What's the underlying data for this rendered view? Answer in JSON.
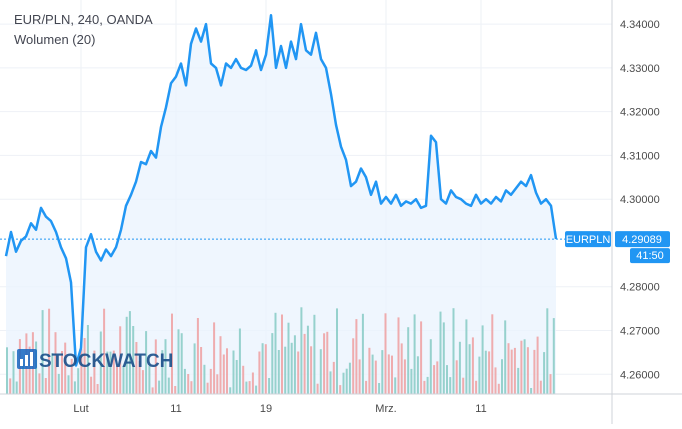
{
  "header": {
    "symbol_line": "EUR/PLN, 240, OANDA",
    "volume_line": "Wolumen (20)"
  },
  "watermark": {
    "text": "STOCKWATCH"
  },
  "price_badge": {
    "symbol": "EURPLN",
    "price": "4.29089",
    "countdown": "41:50"
  },
  "colors": {
    "line": "#2196f3",
    "area": "#e9f3fd",
    "up_volume": "#7fc8c1",
    "down_volume": "#ef9a9a",
    "badge": "#2196f3",
    "grid": "#eef1f6",
    "axis_text": "#4a4a4a"
  },
  "chart_data": {
    "type": "line",
    "ylim": [
      4.2555,
      4.3455
    ],
    "yticks": [
      "4.34000",
      "4.33000",
      "4.32000",
      "4.31000",
      "4.30000",
      "4.28000",
      "4.27000",
      "4.26000"
    ],
    "ytick_values": [
      4.34,
      4.33,
      4.32,
      4.31,
      4.3,
      4.28,
      4.27,
      4.26
    ],
    "xlim": [
      0,
      112
    ],
    "xticks": [
      {
        "label": "Lut",
        "x": 15
      },
      {
        "label": "11",
        "x": 34
      },
      {
        "label": "19",
        "x": 52
      },
      {
        "label": "Mrz.",
        "x": 76
      },
      {
        "label": "11",
        "x": 95
      }
    ],
    "grid": true,
    "last_price": 4.29089,
    "series": [
      {
        "x": [
          0,
          1,
          2,
          3,
          4,
          5,
          6,
          7,
          8,
          9,
          10,
          11,
          12,
          13,
          14,
          15,
          16,
          17,
          18,
          19,
          20,
          21,
          22,
          23,
          24,
          25,
          26,
          27,
          28,
          29,
          30,
          31,
          32,
          33,
          34,
          35,
          36,
          37,
          38,
          39,
          40,
          41,
          42,
          43,
          44,
          45,
          46,
          47,
          48,
          49,
          50,
          51,
          52,
          53,
          54,
          55,
          56,
          57,
          58,
          59,
          60,
          61,
          62,
          63,
          64,
          65,
          66,
          67,
          68,
          69,
          70,
          71,
          72,
          73,
          74,
          75,
          76,
          77,
          78,
          79,
          80,
          81,
          82,
          83,
          84,
          85,
          86,
          87,
          88,
          89,
          90,
          91,
          92,
          93,
          94,
          95,
          96,
          97,
          98,
          99,
          100,
          101,
          102,
          103,
          104,
          105,
          106,
          107,
          108,
          109,
          110
        ],
        "y": [
          4.287,
          4.2925,
          4.288,
          4.2905,
          4.2915,
          4.2945,
          4.293,
          4.298,
          4.296,
          4.295,
          4.2925,
          4.289,
          4.2865,
          4.281,
          4.262,
          4.266,
          4.289,
          4.292,
          4.288,
          4.286,
          4.2885,
          4.287,
          4.289,
          4.293,
          4.2985,
          4.301,
          4.304,
          4.3085,
          4.308,
          4.311,
          4.3095,
          4.3165,
          4.321,
          4.3265,
          4.328,
          4.331,
          4.326,
          4.3355,
          4.339,
          4.336,
          4.34,
          4.331,
          4.33,
          4.326,
          4.331,
          4.33,
          4.332,
          4.33,
          4.3295,
          4.3305,
          4.334,
          4.3295,
          4.333,
          4.342,
          4.33,
          4.335,
          4.33,
          4.336,
          4.332,
          4.34,
          4.334,
          4.333,
          4.338,
          4.332,
          4.33,
          4.324,
          4.317,
          4.312,
          4.309,
          4.303,
          4.304,
          4.307,
          4.305,
          4.301,
          4.304,
          4.299,
          4.3005,
          4.299,
          4.301,
          4.2985,
          4.2995,
          4.299,
          4.3,
          4.298,
          4.2985,
          4.3145,
          4.313,
          4.3,
          4.299,
          4.302,
          4.3005,
          4.3,
          4.299,
          4.2985,
          4.301,
          4.299,
          4.3,
          4.299,
          4.3005,
          4.2995,
          4.302,
          4.301,
          4.3025,
          4.304,
          4.303,
          4.3055,
          4.3015,
          4.299,
          4.3,
          4.2985,
          4.2909
        ]
      }
    ],
    "volume": {
      "bars": 170,
      "max": 100
    }
  }
}
